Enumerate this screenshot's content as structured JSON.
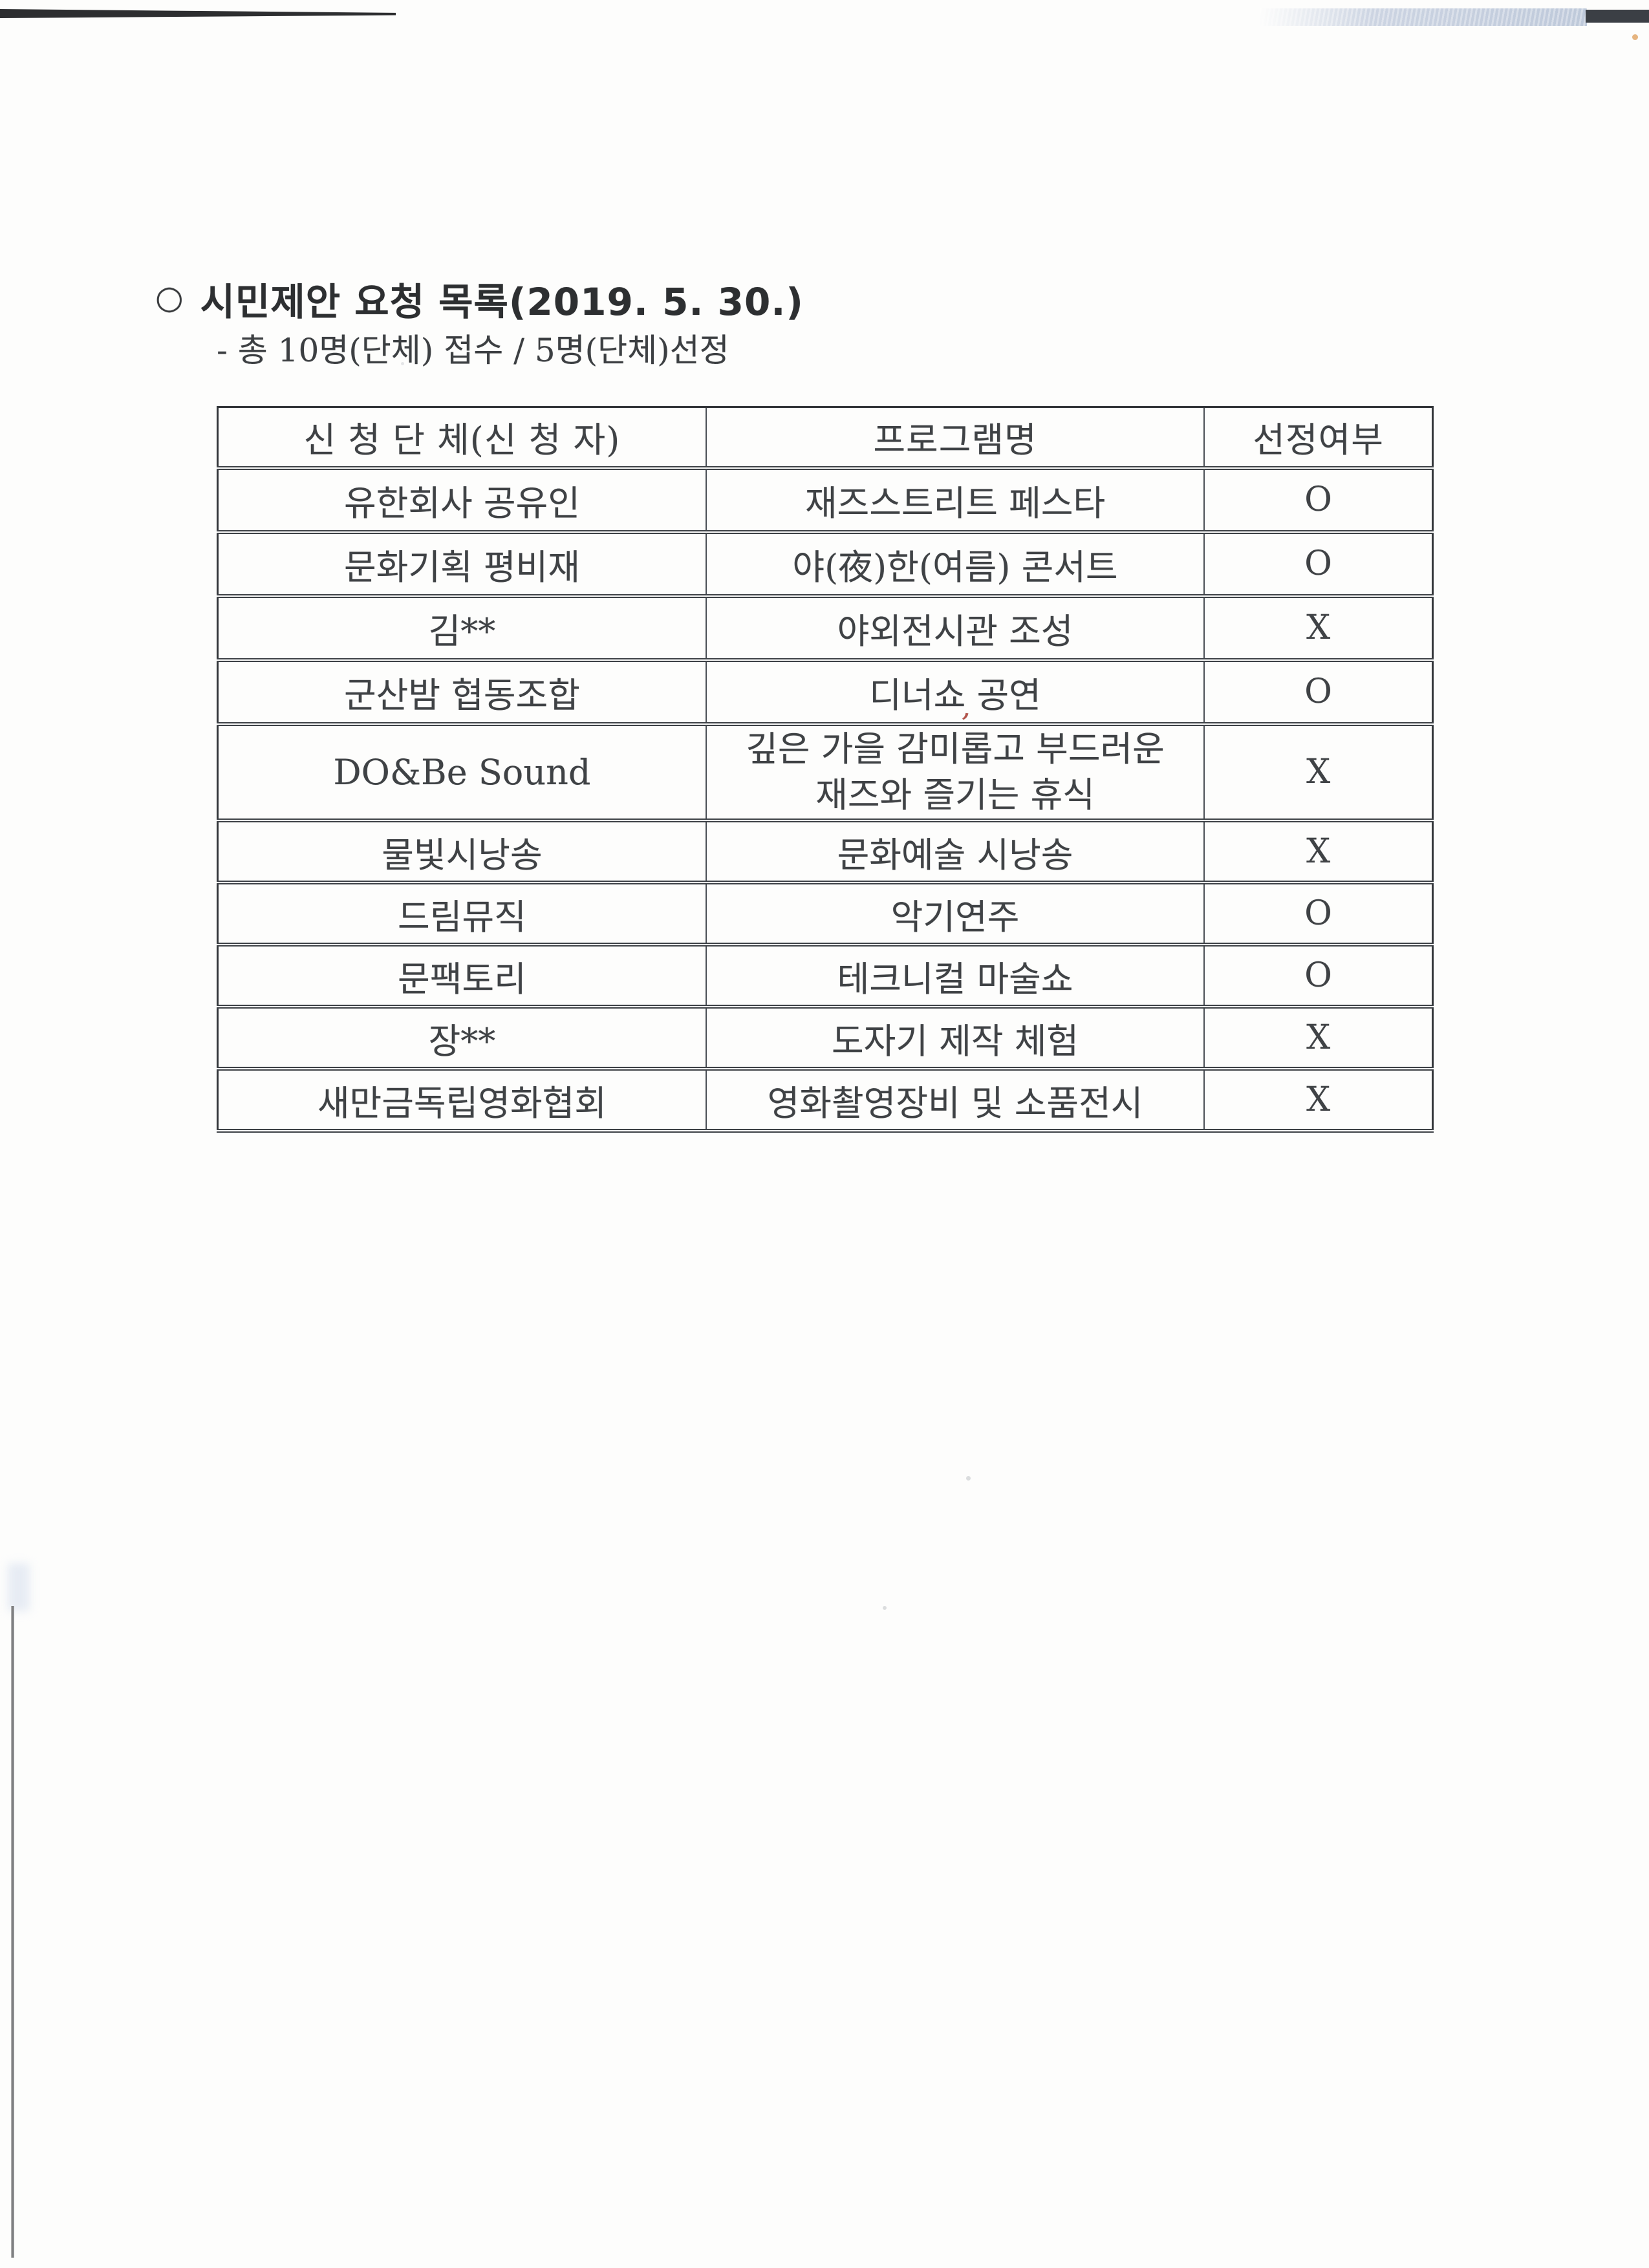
{
  "page": {
    "title_bullet": "○",
    "title": "시민제안 요청 목록(2019. 5. 30.)",
    "subtitle": "- 총 10명(단체) 접수 / 5명(단체)선정"
  },
  "table": {
    "columns": [
      "신 청 단 체(신 청 자)",
      "프로그램명",
      "선정여부"
    ],
    "rows": [
      {
        "applicant": "유한회사 공유인",
        "program": "재즈스트리트 페스타",
        "selected": "O"
      },
      {
        "applicant": "문화기획 평비재",
        "program": "야(夜)한(여름) 콘서트",
        "selected": "O"
      },
      {
        "applicant": "김**",
        "program": "야외전시관 조성",
        "selected": "X"
      },
      {
        "applicant": "군산밤 협동조합",
        "program": "디너쇼 공연",
        "selected": "O"
      },
      {
        "applicant": "DO&Be Sound",
        "program": "깊은 가을 감미롭고 부드러운\n재즈와 즐기는 휴식",
        "selected": "X"
      },
      {
        "applicant": "물빛시낭송",
        "program": "문화예술 시낭송",
        "selected": "X"
      },
      {
        "applicant": "드림뮤직",
        "program": "악기연주",
        "selected": "O"
      },
      {
        "applicant": "문팩토리",
        "program": "테크니컬 마술쇼",
        "selected": "O"
      },
      {
        "applicant": "장**",
        "program": "도자기 제작 체험",
        "selected": "X"
      },
      {
        "applicant": "새만금독립영화협회",
        "program": "영화촬영장비 및 소품전시",
        "selected": "X"
      }
    ]
  },
  "artifacts": {
    "red_mark": ","
  }
}
